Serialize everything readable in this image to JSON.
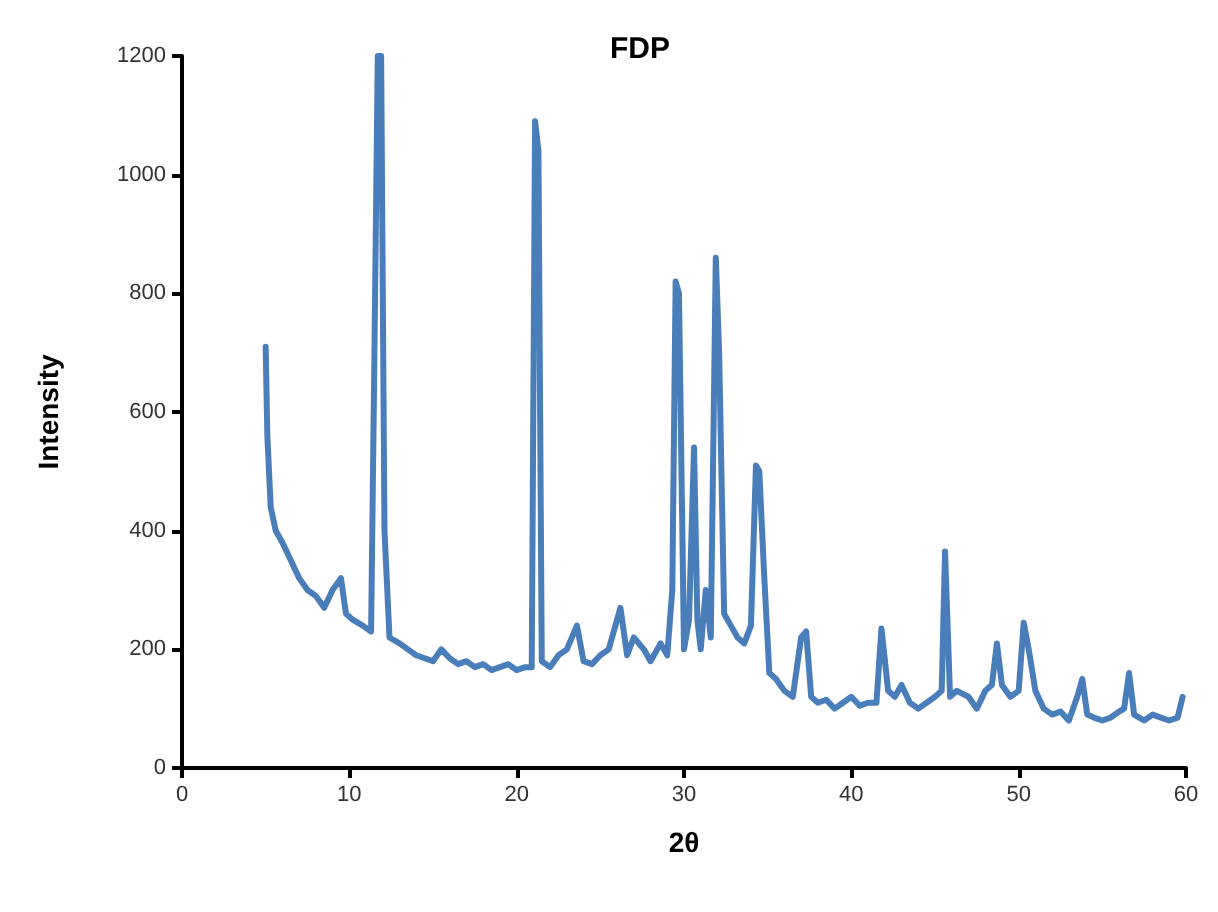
{
  "chart_data": {
    "type": "line",
    "title": "FDP",
    "xlabel": "2θ",
    "ylabel": "Intensity",
    "xlim": [
      0,
      60
    ],
    "xticks": [
      0,
      10,
      20,
      30,
      40,
      50,
      60
    ],
    "ylim": [
      0,
      1200
    ],
    "yticks": [
      0,
      200,
      400,
      600,
      800,
      1000,
      1200
    ],
    "marker": "none",
    "line_style": "solid",
    "series": [
      {
        "color": "#4a7ebb",
        "x": [
          5.0,
          5.1,
          5.3,
          5.6,
          6.0,
          6.5,
          7.0,
          7.5,
          8.0,
          8.5,
          9.0,
          9.5,
          9.8,
          10.2,
          10.8,
          11.3,
          11.5,
          11.7,
          11.9,
          12.1,
          12.4,
          13.0,
          13.5,
          14.0,
          14.5,
          15.0,
          15.5,
          16.0,
          16.5,
          17.0,
          17.5,
          18.0,
          18.5,
          19.0,
          19.5,
          20.0,
          20.5,
          20.9,
          21.1,
          21.3,
          21.5,
          22.0,
          22.5,
          23.0,
          23.6,
          24.0,
          24.5,
          25.0,
          25.5,
          26.2,
          26.6,
          27.0,
          27.6,
          28.0,
          28.6,
          29.0,
          29.3,
          29.5,
          29.7,
          30.0,
          30.3,
          30.6,
          30.8,
          31.0,
          31.3,
          31.6,
          31.9,
          32.1,
          32.4,
          32.8,
          33.2,
          33.6,
          34.0,
          34.3,
          34.5,
          34.8,
          35.1,
          35.5,
          36.0,
          36.5,
          37.0,
          37.3,
          37.6,
          38.0,
          38.5,
          39.0,
          39.5,
          40.0,
          40.5,
          41.0,
          41.5,
          41.8,
          42.2,
          42.6,
          43.0,
          43.5,
          44.0,
          44.5,
          45.0,
          45.4,
          45.6,
          45.9,
          46.3,
          47.0,
          47.5,
          48.0,
          48.4,
          48.7,
          49.0,
          49.5,
          50.0,
          50.3,
          50.6,
          51.0,
          51.5,
          52.0,
          52.5,
          53.0,
          53.5,
          53.8,
          54.1,
          54.5,
          55.0,
          55.5,
          56.0,
          56.3,
          56.6,
          56.9,
          57.5,
          58.0,
          58.5,
          59.0,
          59.5,
          59.8
        ],
        "values": [
          710,
          560,
          440,
          400,
          380,
          350,
          320,
          300,
          290,
          270,
          300,
          320,
          260,
          250,
          240,
          230,
          700,
          1200,
          1200,
          400,
          220,
          210,
          200,
          190,
          185,
          180,
          200,
          185,
          175,
          180,
          170,
          175,
          165,
          170,
          175,
          165,
          170,
          170,
          1090,
          1040,
          180,
          170,
          190,
          200,
          240,
          180,
          175,
          190,
          200,
          270,
          190,
          220,
          200,
          180,
          210,
          190,
          300,
          820,
          800,
          200,
          250,
          540,
          250,
          200,
          300,
          220,
          860,
          700,
          260,
          240,
          220,
          210,
          240,
          510,
          500,
          320,
          160,
          150,
          130,
          120,
          220,
          230,
          120,
          110,
          115,
          100,
          110,
          120,
          105,
          110,
          110,
          235,
          130,
          120,
          140,
          110,
          100,
          110,
          120,
          130,
          365,
          120,
          130,
          120,
          100,
          130,
          140,
          210,
          140,
          120,
          130,
          245,
          200,
          130,
          100,
          90,
          95,
          80,
          120,
          150,
          90,
          85,
          80,
          85,
          95,
          100,
          160,
          90,
          80,
          90,
          85,
          80,
          85,
          120
        ]
      }
    ]
  }
}
